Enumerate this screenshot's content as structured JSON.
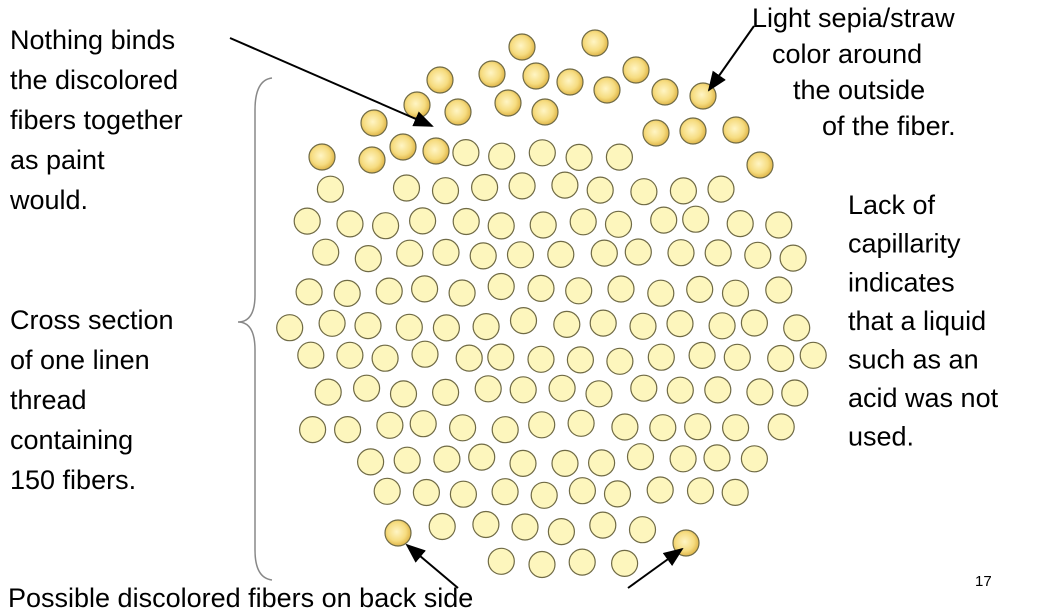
{
  "annotations": {
    "binding_note": [
      "Nothing binds",
      "the discolored",
      "fibers together",
      "as paint",
      "would."
    ],
    "cross_section_note": [
      "Cross section",
      "of one linen",
      "thread",
      "containing",
      "150 fibers."
    ],
    "color_note": [
      "Light sepia/straw",
      "color around",
      "the outside",
      "of the fiber."
    ],
    "capillarity_note": [
      "Lack of",
      "capillarity",
      "indicates",
      "that a liquid",
      "such as an",
      "acid was not",
      "used."
    ],
    "back_side_note": "Possible discolored fibers on back side"
  },
  "slide_number": "17"
}
